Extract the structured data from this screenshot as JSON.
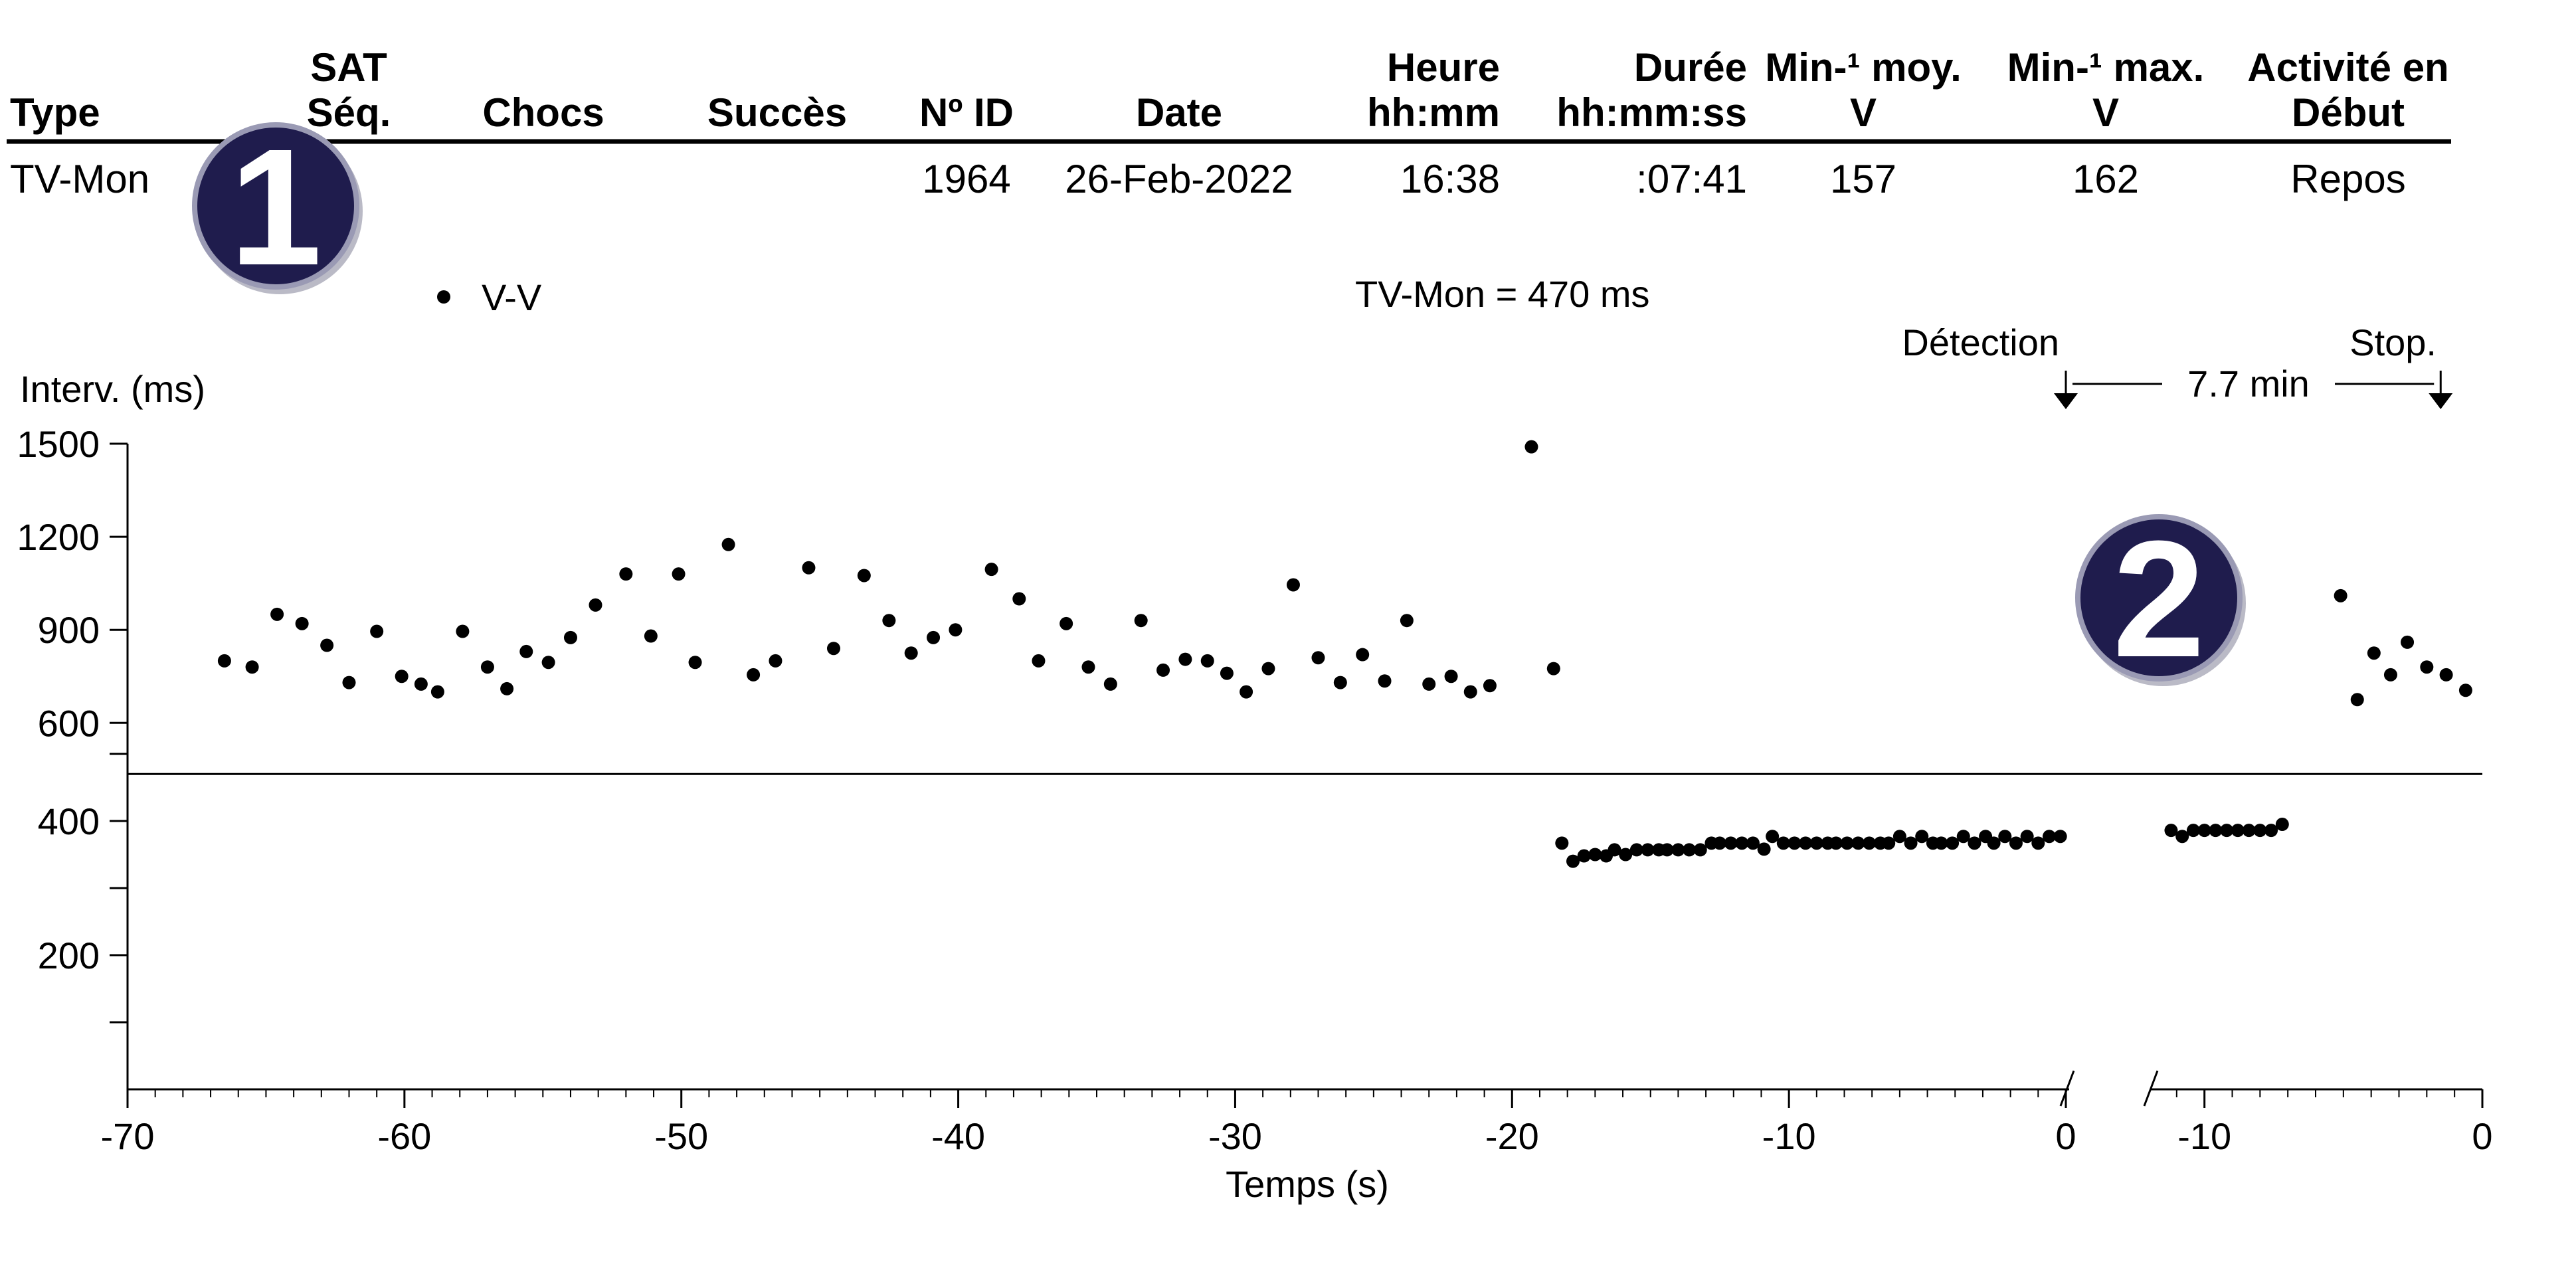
{
  "table": {
    "headers": [
      {
        "key": "type",
        "lines": [
          "Type"
        ]
      },
      {
        "key": "sat_seq",
        "lines": [
          "SAT",
          "Séq."
        ]
      },
      {
        "key": "chocs",
        "lines": [
          "Chocs"
        ]
      },
      {
        "key": "succes",
        "lines": [
          "Succès"
        ]
      },
      {
        "key": "id",
        "lines": [
          "Nº ID"
        ]
      },
      {
        "key": "date",
        "lines": [
          "Date"
        ]
      },
      {
        "key": "heure",
        "lines": [
          "Heure",
          "hh:mm"
        ]
      },
      {
        "key": "duree",
        "lines": [
          "Durée",
          "hh:mm:ss"
        ]
      },
      {
        "key": "min_moy",
        "lines": [
          "Min-¹ moy.",
          "V"
        ]
      },
      {
        "key": "min_max",
        "lines": [
          "Min-¹ max.",
          "V"
        ]
      },
      {
        "key": "activite",
        "lines": [
          "Activité en",
          "Début"
        ]
      }
    ],
    "row": {
      "type": "TV-Mon",
      "sat_seq": "",
      "chocs": "",
      "succes": "",
      "id": "1964",
      "date": "26-Feb-2022",
      "heure": "16:38",
      "duree": ":07:41",
      "min_moy": "157",
      "min_max": "162",
      "activite": "Repos"
    }
  },
  "badges": [
    "1",
    "2"
  ],
  "colors": {
    "badge_fill": "#1f1c4d",
    "badge_ring": "#9a9ab4",
    "ink": "#000000"
  },
  "chart_data": {
    "type": "scatter",
    "legend": {
      "label": "V-V",
      "placement": "top-left"
    },
    "threshold": {
      "label": "TV-Mon = 470 ms",
      "value": 470
    },
    "ylabel": "Interv. (ms)",
    "xlabel": "Temps (s)",
    "y_ticks_labeled": [
      1500,
      1200,
      900,
      600,
      400,
      200
    ],
    "y_ticks_minor": [
      500,
      300,
      100
    ],
    "y_scale": "piecewise-linear: 0-500 and 500-1500 segments",
    "ylim": [
      0,
      1500
    ],
    "grid": false,
    "panels": [
      {
        "name": "detection",
        "xlim": [
          -70,
          0
        ],
        "x_ticks": [
          -70,
          -60,
          -50,
          -40,
          -30,
          -20,
          -10,
          0
        ],
        "points": [
          [
            -66.5,
            800
          ],
          [
            -65.5,
            780
          ],
          [
            -64.6,
            950
          ],
          [
            -63.7,
            920
          ],
          [
            -62.8,
            850
          ],
          [
            -62.0,
            730
          ],
          [
            -61.0,
            895
          ],
          [
            -60.1,
            750
          ],
          [
            -59.4,
            725
          ],
          [
            -58.8,
            700
          ],
          [
            -57.9,
            895
          ],
          [
            -57.0,
            780
          ],
          [
            -56.3,
            710
          ],
          [
            -55.6,
            830
          ],
          [
            -54.8,
            795
          ],
          [
            -54.0,
            875
          ],
          [
            -53.1,
            980
          ],
          [
            -52.0,
            1080
          ],
          [
            -51.1,
            880
          ],
          [
            -49.5,
            795
          ],
          [
            -50.1,
            1080
          ],
          [
            -48.3,
            1175
          ],
          [
            -47.4,
            755
          ],
          [
            -46.6,
            800
          ],
          [
            -45.4,
            1100
          ],
          [
            -44.5,
            840
          ],
          [
            -43.4,
            1075
          ],
          [
            -42.5,
            930
          ],
          [
            -41.7,
            825
          ],
          [
            -40.9,
            875
          ],
          [
            -40.1,
            900
          ],
          [
            -38.8,
            1095
          ],
          [
            -37.8,
            1000
          ],
          [
            -37.1,
            800
          ],
          [
            -36.1,
            920
          ],
          [
            -35.3,
            780
          ],
          [
            -34.5,
            725
          ],
          [
            -33.4,
            930
          ],
          [
            -32.6,
            770
          ],
          [
            -31.8,
            805
          ],
          [
            -31.0,
            800
          ],
          [
            -30.3,
            760
          ],
          [
            -29.6,
            700
          ],
          [
            -28.8,
            775
          ],
          [
            -27.9,
            1045
          ],
          [
            -27.0,
            810
          ],
          [
            -26.2,
            730
          ],
          [
            -25.4,
            820
          ],
          [
            -24.6,
            735
          ],
          [
            -23.8,
            930
          ],
          [
            -23.0,
            725
          ],
          [
            -22.2,
            750
          ],
          [
            -21.5,
            700
          ],
          [
            -20.8,
            720
          ],
          [
            -19.3,
            1490
          ],
          [
            -18.5,
            775
          ],
          [
            -18.2,
            367
          ],
          [
            -17.8,
            340
          ],
          [
            -17.4,
            348
          ],
          [
            -17.0,
            350
          ],
          [
            -16.6,
            348
          ],
          [
            -16.3,
            357
          ],
          [
            -15.9,
            350
          ],
          [
            -15.5,
            357
          ],
          [
            -15.1,
            357
          ],
          [
            -14.7,
            357
          ],
          [
            -14.4,
            357
          ],
          [
            -14.0,
            357
          ],
          [
            -13.6,
            357
          ],
          [
            -13.2,
            357
          ],
          [
            -12.8,
            367
          ],
          [
            -12.5,
            367
          ],
          [
            -12.1,
            367
          ],
          [
            -11.7,
            367
          ],
          [
            -11.3,
            367
          ],
          [
            -10.9,
            358
          ],
          [
            -10.6,
            377
          ],
          [
            -10.2,
            367
          ],
          [
            -9.8,
            367
          ],
          [
            -9.4,
            367
          ],
          [
            -9.0,
            367
          ],
          [
            -8.6,
            367
          ],
          [
            -8.3,
            367
          ],
          [
            -7.9,
            367
          ],
          [
            -7.5,
            367
          ],
          [
            -7.1,
            367
          ],
          [
            -6.7,
            367
          ],
          [
            -6.4,
            367
          ],
          [
            -6.0,
            377
          ],
          [
            -5.6,
            367
          ],
          [
            -5.2,
            377
          ],
          [
            -4.8,
            367
          ],
          [
            -4.5,
            367
          ],
          [
            -4.1,
            367
          ],
          [
            -3.7,
            377
          ],
          [
            -3.3,
            367
          ],
          [
            -2.9,
            377
          ],
          [
            -2.6,
            367
          ],
          [
            -2.2,
            377
          ],
          [
            -1.8,
            367
          ],
          [
            -1.4,
            377
          ],
          [
            -1.0,
            367
          ],
          [
            -0.6,
            377
          ],
          [
            -0.2,
            377
          ]
        ]
      },
      {
        "name": "stop",
        "xlim": [
          -12,
          0
        ],
        "x_ticks": [
          -10,
          0
        ],
        "points": [
          [
            -11.2,
            386
          ],
          [
            -10.8,
            377
          ],
          [
            -10.4,
            386
          ],
          [
            -10.0,
            386
          ],
          [
            -9.6,
            386
          ],
          [
            -9.2,
            386
          ],
          [
            -8.8,
            386
          ],
          [
            -8.4,
            386
          ],
          [
            -8.0,
            386
          ],
          [
            -7.6,
            386
          ],
          [
            -7.2,
            395
          ],
          [
            -5.1,
            1010
          ],
          [
            -4.5,
            675
          ],
          [
            -3.9,
            825
          ],
          [
            -3.3,
            755
          ],
          [
            -2.7,
            860
          ],
          [
            -2.0,
            780
          ],
          [
            -1.3,
            755
          ],
          [
            -0.6,
            705
          ]
        ]
      }
    ],
    "annotations": {
      "detection_label": "Détection",
      "stop_label": "Stop.",
      "duration_label": "7.7 min"
    }
  }
}
